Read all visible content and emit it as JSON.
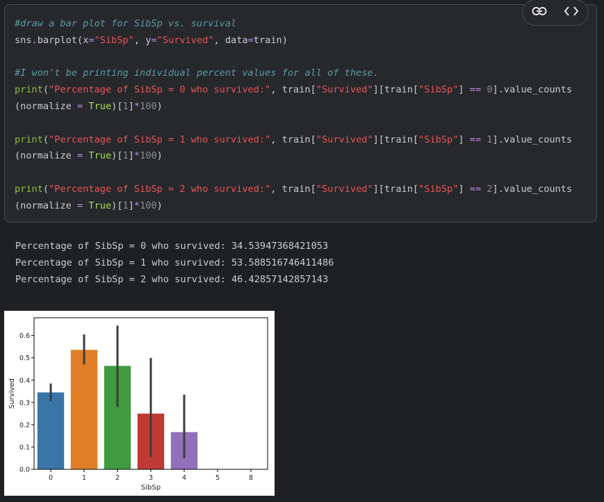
{
  "code_cell": {
    "lines": [
      [
        {
          "t": "#draw a bar plot for SibSp vs. survival",
          "c": "cm"
        }
      ],
      [
        {
          "t": "sns",
          "c": "tl"
        },
        {
          "t": ".",
          "c": "op"
        },
        {
          "t": "barplot(x",
          "c": "tl"
        },
        {
          "t": "=",
          "c": "op"
        },
        {
          "t": "\"SibSp\"",
          "c": "st"
        },
        {
          "t": ", y",
          "c": "tl"
        },
        {
          "t": "=",
          "c": "op"
        },
        {
          "t": "\"Survived\"",
          "c": "st"
        },
        {
          "t": ", data",
          "c": "tl"
        },
        {
          "t": "=",
          "c": "op"
        },
        {
          "t": "train)",
          "c": "tl"
        }
      ],
      [],
      [
        {
          "t": "#I won't be printing individual percent values for all of these.",
          "c": "cm"
        }
      ],
      [
        {
          "t": "print",
          "c": "fn"
        },
        {
          "t": "(",
          "c": "tl"
        },
        {
          "t": "\"Percentage of SibSp = 0 who survived:\"",
          "c": "st"
        },
        {
          "t": ", train[",
          "c": "tl"
        },
        {
          "t": "\"Survived\"",
          "c": "st"
        },
        {
          "t": "][train[",
          "c": "tl"
        },
        {
          "t": "\"SibSp\"",
          "c": "st"
        },
        {
          "t": "] ",
          "c": "tl"
        },
        {
          "t": "==",
          "c": "op"
        },
        {
          "t": " ",
          "c": "tl"
        },
        {
          "t": "0",
          "c": "nm"
        },
        {
          "t": "].value_counts",
          "c": "tl"
        }
      ],
      [
        {
          "t": "(normalize ",
          "c": "tl"
        },
        {
          "t": "=",
          "c": "op"
        },
        {
          "t": " ",
          "c": "tl"
        },
        {
          "t": "True",
          "c": "kw"
        },
        {
          "t": ")[",
          "c": "tl"
        },
        {
          "t": "1",
          "c": "nm"
        },
        {
          "t": "]",
          "c": "tl"
        },
        {
          "t": "*",
          "c": "op"
        },
        {
          "t": "100",
          "c": "nm"
        },
        {
          "t": ")",
          "c": "tl"
        }
      ],
      [],
      [
        {
          "t": "print",
          "c": "fn"
        },
        {
          "t": "(",
          "c": "tl"
        },
        {
          "t": "\"Percentage of SibSp = 1 who survived:\"",
          "c": "st"
        },
        {
          "t": ", train[",
          "c": "tl"
        },
        {
          "t": "\"Survived\"",
          "c": "st"
        },
        {
          "t": "][train[",
          "c": "tl"
        },
        {
          "t": "\"SibSp\"",
          "c": "st"
        },
        {
          "t": "] ",
          "c": "tl"
        },
        {
          "t": "==",
          "c": "op"
        },
        {
          "t": " ",
          "c": "tl"
        },
        {
          "t": "1",
          "c": "nm"
        },
        {
          "t": "].value_counts",
          "c": "tl"
        }
      ],
      [
        {
          "t": "(normalize ",
          "c": "tl"
        },
        {
          "t": "=",
          "c": "op"
        },
        {
          "t": " ",
          "c": "tl"
        },
        {
          "t": "True",
          "c": "kw"
        },
        {
          "t": ")[",
          "c": "tl"
        },
        {
          "t": "1",
          "c": "nm"
        },
        {
          "t": "]",
          "c": "tl"
        },
        {
          "t": "*",
          "c": "op"
        },
        {
          "t": "100",
          "c": "nm"
        },
        {
          "t": ")",
          "c": "tl"
        }
      ],
      [],
      [
        {
          "t": "print",
          "c": "fn"
        },
        {
          "t": "(",
          "c": "tl"
        },
        {
          "t": "\"Percentage of SibSp = 2 who survived:\"",
          "c": "st"
        },
        {
          "t": ", train[",
          "c": "tl"
        },
        {
          "t": "\"Survived\"",
          "c": "st"
        },
        {
          "t": "][train[",
          "c": "tl"
        },
        {
          "t": "\"SibSp\"",
          "c": "st"
        },
        {
          "t": "] ",
          "c": "tl"
        },
        {
          "t": "==",
          "c": "op"
        },
        {
          "t": " ",
          "c": "tl"
        },
        {
          "t": "2",
          "c": "nm"
        },
        {
          "t": "].value_counts",
          "c": "tl"
        }
      ],
      [
        {
          "t": "(normalize ",
          "c": "tl"
        },
        {
          "t": "=",
          "c": "op"
        },
        {
          "t": " ",
          "c": "tl"
        },
        {
          "t": "True",
          "c": "kw"
        },
        {
          "t": ")[",
          "c": "tl"
        },
        {
          "t": "1",
          "c": "nm"
        },
        {
          "t": "]",
          "c": "tl"
        },
        {
          "t": "*",
          "c": "op"
        },
        {
          "t": "100",
          "c": "nm"
        },
        {
          "t": ")",
          "c": "tl"
        }
      ]
    ]
  },
  "toolbar": {
    "icons": [
      "link-icon",
      "code-brackets-icon"
    ]
  },
  "output": {
    "lines": [
      "Percentage of SibSp = 0 who survived: 34.53947368421053",
      "Percentage of SibSp = 1 who survived: 53.588516746411486",
      "Percentage of SibSp = 2 who survived: 46.42857142857143"
    ]
  },
  "chart_data": {
    "type": "bar",
    "categories": [
      "0",
      "1",
      "2",
      "3",
      "4",
      "5",
      "8"
    ],
    "values": [
      0.345,
      0.536,
      0.464,
      0.25,
      0.167,
      0,
      0
    ],
    "error_low": [
      0.305,
      0.47,
      0.28,
      0.055,
      0.05,
      0,
      0
    ],
    "error_high": [
      0.385,
      0.605,
      0.645,
      0.5,
      0.335,
      0,
      0
    ],
    "colors": [
      "#3a75a8",
      "#e07f28",
      "#3f9a40",
      "#c03a35",
      "#9270bb",
      "#8c564b",
      "#e377c2"
    ],
    "xlabel": "SibSp",
    "ylabel": "Survived",
    "yticks": [
      "0.0",
      "0.1",
      "0.2",
      "0.3",
      "0.4",
      "0.5",
      "0.6"
    ],
    "ylim": [
      0,
      0.68
    ],
    "grid": false
  }
}
